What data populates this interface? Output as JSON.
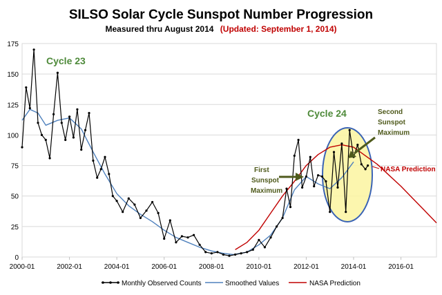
{
  "chart_data": {
    "type": "line",
    "title": "SILSO Solar Cycle Sunspot Number Progression",
    "subtitle": "Measured thru August 2014",
    "subtitle_note": "(Updated: September 1, 2014)",
    "xlabel": "",
    "ylabel": "",
    "xlim": [
      2000.0,
      2017.5
    ],
    "ylim": [
      0,
      175
    ],
    "x_ticks": [
      "2000-01",
      "2002-01",
      "2004-01",
      "2006-01",
      "2008-01",
      "2010-01",
      "2012-01",
      "2014-01",
      "2016-01"
    ],
    "y_ticks": [
      0,
      25,
      50,
      75,
      100,
      125,
      150,
      175
    ],
    "grid": "horizontal",
    "legend_position": "bottom",
    "series": [
      {
        "name": "Monthly Observed Counts",
        "color": "#000000",
        "marker": "dot",
        "x": [
          2000.0,
          2000.17,
          2000.33,
          2000.5,
          2000.67,
          2000.83,
          2001.0,
          2001.17,
          2001.33,
          2001.5,
          2001.67,
          2001.83,
          2002.0,
          2002.17,
          2002.33,
          2002.5,
          2002.67,
          2002.83,
          2003.0,
          2003.17,
          2003.33,
          2003.5,
          2003.67,
          2003.83,
          2004.0,
          2004.25,
          2004.5,
          2004.75,
          2005.0,
          2005.25,
          2005.5,
          2005.75,
          2006.0,
          2006.25,
          2006.5,
          2006.75,
          2007.0,
          2007.25,
          2007.5,
          2007.75,
          2008.0,
          2008.25,
          2008.5,
          2008.75,
          2009.0,
          2009.25,
          2009.5,
          2009.75,
          2010.0,
          2010.25,
          2010.5,
          2010.75,
          2011.0,
          2011.17,
          2011.33,
          2011.5,
          2011.67,
          2011.83,
          2012.0,
          2012.17,
          2012.33,
          2012.5,
          2012.67,
          2012.83,
          2013.0,
          2013.17,
          2013.33,
          2013.5,
          2013.67,
          2013.83,
          2014.0,
          2014.17,
          2014.33,
          2014.5,
          2014.6
        ],
        "y": [
          90,
          139,
          122,
          170,
          110,
          100,
          96,
          81,
          117,
          151,
          110,
          96,
          115,
          98,
          121,
          88,
          104,
          118,
          79,
          65,
          72,
          82,
          68,
          50,
          46,
          37,
          48,
          43,
          32,
          38,
          45,
          36,
          15,
          30,
          12,
          17,
          16,
          18,
          10,
          4,
          3,
          4,
          2,
          1,
          2,
          3,
          4,
          6,
          14,
          8,
          16,
          25,
          32,
          56,
          41,
          83,
          96,
          57,
          66,
          82,
          58,
          67,
          66,
          62,
          37,
          86,
          57,
          93,
          37,
          104,
          82,
          92,
          76,
          72,
          75
        ]
      },
      {
        "name": "Smoothed Values",
        "color": "#4f81bd",
        "x": [
          2000.0,
          2000.33,
          2000.67,
          2001.0,
          2001.5,
          2002.0,
          2002.5,
          2003.0,
          2003.5,
          2004.0,
          2004.5,
          2005.0,
          2005.5,
          2006.0,
          2006.5,
          2007.0,
          2007.5,
          2008.0,
          2008.5,
          2008.92,
          2009.5,
          2010.0,
          2010.5,
          2011.0,
          2011.5,
          2012.0,
          2012.5,
          2013.0,
          2013.5,
          2014.0
        ],
        "y": [
          112,
          121,
          118,
          108,
          112,
          114,
          105,
          86,
          68,
          52,
          42,
          35,
          29,
          22,
          16,
          12,
          8,
          5,
          3,
          2,
          4,
          10,
          18,
          32,
          55,
          66,
          60,
          56,
          65,
          78
        ]
      },
      {
        "name": "NASA Prediction",
        "color": "#c00000",
        "x": [
          2009.0,
          2009.5,
          2010.0,
          2010.5,
          2011.0,
          2011.5,
          2012.0,
          2012.5,
          2013.0,
          2013.5,
          2014.0,
          2014.5,
          2015.0,
          2015.5,
          2016.0,
          2016.5,
          2017.0,
          2017.5
        ],
        "y": [
          6,
          12,
          22,
          36,
          50,
          62,
          75,
          84,
          90,
          92,
          90,
          83,
          76,
          67,
          58,
          48,
          38,
          28
        ]
      }
    ],
    "annotations": [
      {
        "text": "Cycle 23"
      },
      {
        "text": "Cycle 24"
      },
      {
        "text": "First Sunspot Maximum"
      },
      {
        "text": "Second Sunspot Maximum"
      },
      {
        "text": "NASA Prediction"
      }
    ]
  },
  "labels": {
    "title": "SILSO Solar Cycle Sunspot Number Progression",
    "subtitle": "Measured thru August 2014",
    "subtitle_note": "(Updated: September 1, 2014)",
    "cycle23": "Cycle 23",
    "cycle24": "Cycle 24",
    "first_max_l1": "First",
    "first_max_l2": "Sunspot",
    "first_max_l3": "Maximum",
    "second_max_l1": "Second",
    "second_max_l2": "Sunspot",
    "second_max_l3": "Maximum",
    "nasa_prediction": "NASA Prediction",
    "legend_observed": "Monthly Observed Counts",
    "legend_smoothed": "Smoothed Values",
    "legend_nasa": "NASA Prediction"
  },
  "colors": {
    "observed": "#000000",
    "smoothed": "#4f81bd",
    "nasa": "#c00000",
    "highlight_fill": "#fbf5a0",
    "highlight_stroke": "#3a63b5",
    "annotation_olive": "#4f5a1c",
    "cycle_green": "#4e8a3a",
    "subtitle_red": "#c00000"
  }
}
